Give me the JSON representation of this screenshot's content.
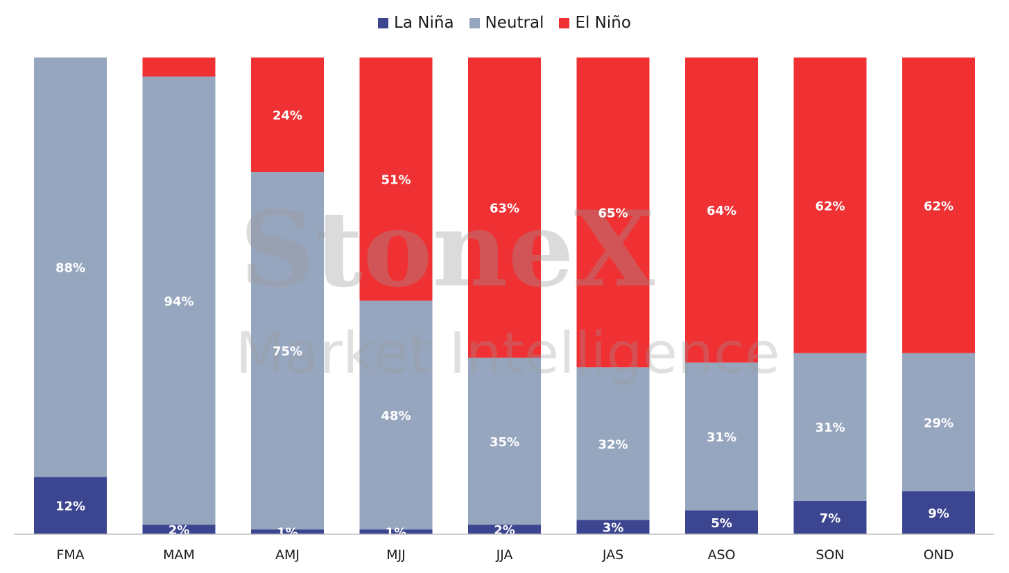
{
  "watermark": {
    "brand": "StoneX",
    "tagline": "Market Intelligence"
  },
  "chart_data": {
    "type": "bar",
    "stacked": true,
    "title": "",
    "xlabel": "",
    "ylabel": "",
    "ylim": [
      0,
      100
    ],
    "grid": false,
    "legend_position": "top-center",
    "categories": [
      "FMA",
      "MAM",
      "AMJ",
      "MJJ",
      "JJA",
      "JAS",
      "ASO",
      "SON",
      "OND"
    ],
    "series": [
      {
        "name": "La Niña",
        "color": "#3c4590",
        "values": [
          12,
          2,
          1,
          1,
          2,
          3,
          5,
          7,
          9
        ],
        "labels": [
          "12%",
          "2%",
          "1%",
          "1%",
          "2%",
          "3%",
          "5%",
          "7%",
          "9%"
        ]
      },
      {
        "name": "Neutral",
        "color": "#97a6bf",
        "values": [
          88,
          94,
          75,
          48,
          35,
          32,
          31,
          31,
          29
        ],
        "labels": [
          "88%",
          "94%",
          "75%",
          "48%",
          "35%",
          "32%",
          "31%",
          "31%",
          "29%"
        ]
      },
      {
        "name": "El Niño",
        "color": "#ef3134",
        "values": [
          0,
          4,
          24,
          51,
          63,
          65,
          64,
          62,
          62
        ],
        "labels": [
          "",
          "",
          "24%",
          "51%",
          "63%",
          "65%",
          "64%",
          "62%",
          "62%"
        ]
      }
    ]
  }
}
